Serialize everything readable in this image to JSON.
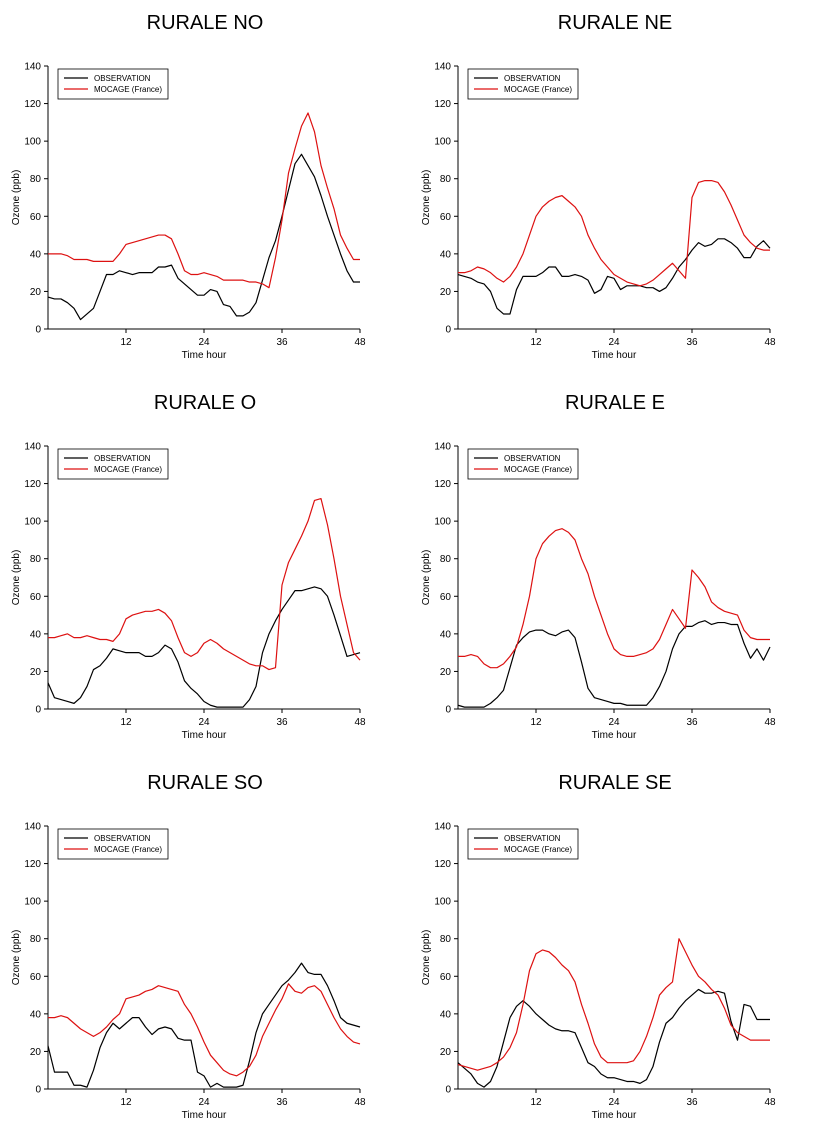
{
  "legend": {
    "observation_label": "OBSERVATION",
    "model_label": "MOCAGE (France)"
  },
  "colors": {
    "observation": "#000000",
    "model": "#dd1111"
  },
  "chart_data": [
    {
      "type": "line",
      "title": "RURALE NO",
      "xlabel": "Time  hour",
      "ylabel": "Ozone (ppb)",
      "xlim": [
        0,
        48
      ],
      "ylim": [
        0,
        140
      ],
      "xticks": [
        12,
        24,
        36,
        48
      ],
      "yticks": [
        0,
        20,
        40,
        60,
        80,
        100,
        120,
        140
      ],
      "legend_position": "top-left",
      "grid": false,
      "x": [
        0,
        1,
        2,
        3,
        4,
        5,
        6,
        7,
        8,
        9,
        10,
        11,
        12,
        13,
        14,
        15,
        16,
        17,
        18,
        19,
        20,
        21,
        22,
        23,
        24,
        25,
        26,
        27,
        28,
        29,
        30,
        31,
        32,
        33,
        34,
        35,
        36,
        37,
        38,
        39,
        40,
        41,
        42,
        43,
        44,
        45,
        46,
        47,
        48
      ],
      "series": [
        {
          "name": "OBSERVATION",
          "values": [
            17,
            16,
            16,
            14,
            11,
            5,
            8,
            11,
            20,
            29,
            29,
            31,
            30,
            29,
            30,
            30,
            30,
            33,
            33,
            34,
            27,
            24,
            21,
            18,
            18,
            21,
            20,
            13,
            12,
            7,
            7,
            9,
            14,
            26,
            38,
            47,
            60,
            74,
            88,
            93,
            87,
            81,
            71,
            60,
            50,
            40,
            31,
            25,
            25
          ]
        },
        {
          "name": "MOCAGE (France)",
          "values": [
            40,
            40,
            40,
            39,
            37,
            37,
            37,
            36,
            36,
            36,
            36,
            40,
            45,
            46,
            47,
            48,
            49,
            50,
            50,
            48,
            40,
            31,
            29,
            29,
            30,
            29,
            28,
            26,
            26,
            26,
            26,
            25,
            25,
            24,
            22,
            38,
            58,
            83,
            96,
            108,
            115,
            105,
            87,
            75,
            64,
            50,
            43,
            37,
            37
          ]
        }
      ]
    },
    {
      "type": "line",
      "title": "RURALE NE",
      "xlabel": "Time  hour",
      "ylabel": "Ozone (ppb)",
      "xlim": [
        0,
        48
      ],
      "ylim": [
        0,
        140
      ],
      "xticks": [
        12,
        24,
        36,
        48
      ],
      "yticks": [
        0,
        20,
        40,
        60,
        80,
        100,
        120,
        140
      ],
      "legend_position": "top-left",
      "grid": false,
      "x": [
        0,
        1,
        2,
        3,
        4,
        5,
        6,
        7,
        8,
        9,
        10,
        11,
        12,
        13,
        14,
        15,
        16,
        17,
        18,
        19,
        20,
        21,
        22,
        23,
        24,
        25,
        26,
        27,
        28,
        29,
        30,
        31,
        32,
        33,
        34,
        35,
        36,
        37,
        38,
        39,
        40,
        41,
        42,
        43,
        44,
        45,
        46,
        47,
        48
      ],
      "series": [
        {
          "name": "OBSERVATION",
          "values": [
            29,
            28,
            27,
            25,
            24,
            20,
            11,
            8,
            8,
            21,
            28,
            28,
            28,
            30,
            33,
            33,
            28,
            28,
            29,
            28,
            26,
            19,
            21,
            28,
            27,
            21,
            23,
            23,
            23,
            22,
            22,
            20,
            22,
            27,
            33,
            37,
            42,
            46,
            44,
            45,
            48,
            48,
            46,
            43,
            38,
            38,
            44,
            47,
            43
          ]
        },
        {
          "name": "MOCAGE (France)",
          "values": [
            30,
            30,
            31,
            33,
            32,
            30,
            27,
            25,
            28,
            33,
            40,
            50,
            60,
            65,
            68,
            70,
            71,
            68,
            65,
            60,
            50,
            43,
            37,
            33,
            29,
            27,
            25,
            24,
            23,
            24,
            26,
            29,
            32,
            35,
            31,
            27,
            70,
            78,
            79,
            79,
            78,
            73,
            66,
            58,
            50,
            46,
            43,
            42,
            42
          ]
        }
      ]
    },
    {
      "type": "line",
      "title": "RURALE O",
      "xlabel": "Time  hour",
      "ylabel": "Ozone (ppb)",
      "xlim": [
        0,
        48
      ],
      "ylim": [
        0,
        140
      ],
      "xticks": [
        12,
        24,
        36,
        48
      ],
      "yticks": [
        0,
        20,
        40,
        60,
        80,
        100,
        120,
        140
      ],
      "legend_position": "top-left",
      "grid": false,
      "x": [
        0,
        1,
        2,
        3,
        4,
        5,
        6,
        7,
        8,
        9,
        10,
        11,
        12,
        13,
        14,
        15,
        16,
        17,
        18,
        19,
        20,
        21,
        22,
        23,
        24,
        25,
        26,
        27,
        28,
        29,
        30,
        31,
        32,
        33,
        34,
        35,
        36,
        37,
        38,
        39,
        40,
        41,
        42,
        43,
        44,
        45,
        46,
        47,
        48
      ],
      "series": [
        {
          "name": "OBSERVATION",
          "values": [
            14,
            6,
            5,
            4,
            3,
            6,
            12,
            21,
            23,
            27,
            32,
            31,
            30,
            30,
            30,
            28,
            28,
            30,
            34,
            32,
            25,
            15,
            11,
            8,
            4,
            2,
            1,
            1,
            1,
            1,
            1,
            5,
            12,
            30,
            40,
            47,
            53,
            58,
            63,
            63,
            64,
            65,
            64,
            60,
            50,
            39,
            28,
            29,
            30
          ]
        },
        {
          "name": "MOCAGE (France)",
          "values": [
            38,
            38,
            39,
            40,
            38,
            38,
            39,
            38,
            37,
            37,
            36,
            40,
            48,
            50,
            51,
            52,
            52,
            53,
            51,
            47,
            38,
            30,
            28,
            30,
            35,
            37,
            35,
            32,
            30,
            28,
            26,
            24,
            23,
            23,
            21,
            22,
            66,
            78,
            85,
            92,
            100,
            111,
            112,
            98,
            80,
            60,
            45,
            30,
            26
          ]
        }
      ]
    },
    {
      "type": "line",
      "title": "RURALE E",
      "xlabel": "Time  hour",
      "ylabel": "Ozone (ppb)",
      "xlim": [
        0,
        48
      ],
      "ylim": [
        0,
        140
      ],
      "xticks": [
        12,
        24,
        36,
        48
      ],
      "yticks": [
        0,
        20,
        40,
        60,
        80,
        100,
        120,
        140
      ],
      "legend_position": "top-left",
      "grid": false,
      "x": [
        0,
        1,
        2,
        3,
        4,
        5,
        6,
        7,
        8,
        9,
        10,
        11,
        12,
        13,
        14,
        15,
        16,
        17,
        18,
        19,
        20,
        21,
        22,
        23,
        24,
        25,
        26,
        27,
        28,
        29,
        30,
        31,
        32,
        33,
        34,
        35,
        36,
        37,
        38,
        39,
        40,
        41,
        42,
        43,
        44,
        45,
        46,
        47,
        48
      ],
      "series": [
        {
          "name": "OBSERVATION",
          "values": [
            2,
            1,
            1,
            1,
            1,
            3,
            6,
            10,
            22,
            34,
            38,
            41,
            42,
            42,
            40,
            39,
            41,
            42,
            38,
            25,
            11,
            6,
            5,
            4,
            3,
            3,
            2,
            2,
            2,
            2,
            6,
            12,
            20,
            32,
            40,
            44,
            44,
            46,
            47,
            45,
            46,
            46,
            45,
            45,
            35,
            27,
            32,
            26,
            33
          ]
        },
        {
          "name": "MOCAGE (France)",
          "values": [
            28,
            28,
            29,
            28,
            24,
            22,
            22,
            24,
            28,
            33,
            45,
            60,
            80,
            88,
            92,
            95,
            96,
            94,
            90,
            80,
            72,
            60,
            50,
            40,
            32,
            29,
            28,
            28,
            29,
            30,
            32,
            37,
            45,
            53,
            48,
            43,
            74,
            70,
            65,
            57,
            54,
            52,
            51,
            50,
            42,
            38,
            37,
            37,
            37
          ]
        }
      ]
    },
    {
      "type": "line",
      "title": "RURALE SO",
      "xlabel": "Time  hour",
      "ylabel": "Ozone (ppb)",
      "xlim": [
        0,
        48
      ],
      "ylim": [
        0,
        140
      ],
      "xticks": [
        12,
        24,
        36,
        48
      ],
      "yticks": [
        0,
        20,
        40,
        60,
        80,
        100,
        120,
        140
      ],
      "legend_position": "top-left",
      "grid": false,
      "x": [
        0,
        1,
        2,
        3,
        4,
        5,
        6,
        7,
        8,
        9,
        10,
        11,
        12,
        13,
        14,
        15,
        16,
        17,
        18,
        19,
        20,
        21,
        22,
        23,
        24,
        25,
        26,
        27,
        28,
        29,
        30,
        31,
        32,
        33,
        34,
        35,
        36,
        37,
        38,
        39,
        40,
        41,
        42,
        43,
        44,
        45,
        46,
        47,
        48
      ],
      "series": [
        {
          "name": "OBSERVATION",
          "values": [
            23,
            9,
            9,
            9,
            2,
            2,
            1,
            10,
            22,
            30,
            35,
            32,
            35,
            38,
            38,
            33,
            29,
            32,
            33,
            32,
            27,
            26,
            26,
            9,
            7,
            1,
            3,
            1,
            1,
            1,
            2,
            15,
            30,
            40,
            45,
            50,
            55,
            58,
            62,
            67,
            62,
            61,
            61,
            55,
            47,
            38,
            35,
            34,
            33
          ]
        },
        {
          "name": "MOCAGE (France)",
          "values": [
            38,
            38,
            39,
            38,
            35,
            32,
            30,
            28,
            30,
            33,
            37,
            40,
            48,
            49,
            50,
            52,
            53,
            55,
            54,
            53,
            52,
            45,
            40,
            33,
            25,
            18,
            14,
            10,
            8,
            7,
            9,
            12,
            18,
            28,
            35,
            42,
            48,
            56,
            52,
            51,
            54,
            55,
            52,
            45,
            38,
            32,
            28,
            25,
            24
          ]
        }
      ]
    },
    {
      "type": "line",
      "title": "RURALE SE",
      "xlabel": "Time  hour",
      "ylabel": "Ozone (ppb)",
      "xlim": [
        0,
        48
      ],
      "ylim": [
        0,
        140
      ],
      "xticks": [
        12,
        24,
        36,
        48
      ],
      "yticks": [
        0,
        20,
        40,
        60,
        80,
        100,
        120,
        140
      ],
      "legend_position": "top-left",
      "grid": false,
      "x": [
        0,
        1,
        2,
        3,
        4,
        5,
        6,
        7,
        8,
        9,
        10,
        11,
        12,
        13,
        14,
        15,
        16,
        17,
        18,
        19,
        20,
        21,
        22,
        23,
        24,
        25,
        26,
        27,
        28,
        29,
        30,
        31,
        32,
        33,
        34,
        35,
        36,
        37,
        38,
        39,
        40,
        41,
        42,
        43,
        44,
        45,
        46,
        47,
        48
      ],
      "series": [
        {
          "name": "OBSERVATION",
          "values": [
            14,
            11,
            8,
            3,
            1,
            4,
            12,
            25,
            38,
            44,
            47,
            44,
            40,
            37,
            34,
            32,
            31,
            31,
            30,
            22,
            14,
            12,
            8,
            6,
            6,
            5,
            4,
            4,
            3,
            5,
            12,
            25,
            35,
            38,
            43,
            47,
            50,
            53,
            51,
            51,
            52,
            51,
            36,
            26,
            45,
            44,
            37,
            37,
            37
          ]
        },
        {
          "name": "MOCAGE (France)",
          "values": [
            13,
            12,
            11,
            10,
            11,
            12,
            14,
            17,
            22,
            30,
            45,
            63,
            72,
            74,
            73,
            70,
            66,
            63,
            57,
            45,
            35,
            24,
            17,
            14,
            14,
            14,
            14,
            15,
            20,
            28,
            38,
            50,
            54,
            57,
            80,
            73,
            66,
            60,
            57,
            53,
            50,
            43,
            34,
            30,
            28,
            26,
            26,
            26,
            26
          ]
        }
      ]
    }
  ]
}
